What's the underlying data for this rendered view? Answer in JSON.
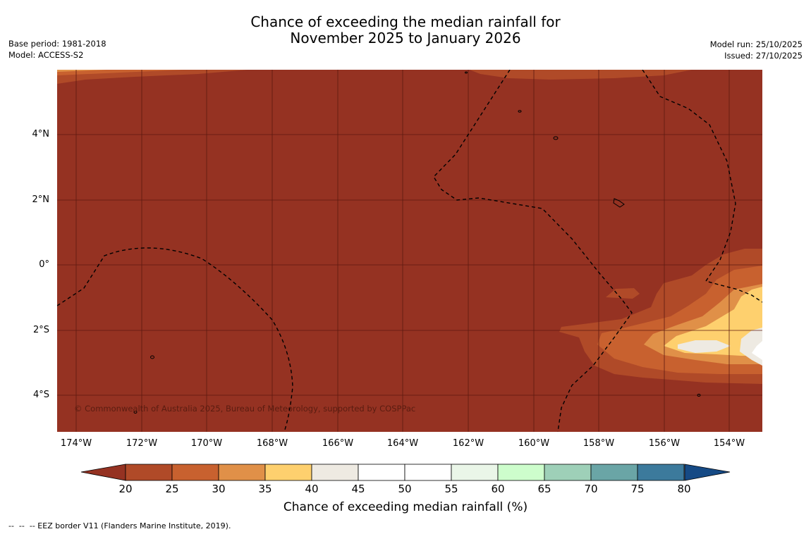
{
  "title": {
    "line1": "Chance of exceeding the median rainfall for",
    "line2": "November 2025 to January 2026"
  },
  "meta_left": {
    "base_period": "Base period: 1981-2018",
    "model": "Model: ACCESS-S2"
  },
  "meta_right": {
    "model_run": "Model run: 25/10/2025",
    "issued": "Issued: 27/10/2025"
  },
  "copyright": "© Commonwealth of Australia 2025, Bureau of Meteorology, supported by COSPPac",
  "lat_ticks": [
    "4°N",
    "2°N",
    "0°",
    "2°S",
    "4°S"
  ],
  "lon_ticks": [
    "174°W",
    "172°W",
    "170°W",
    "168°W",
    "166°W",
    "164°W",
    "162°W",
    "160°W",
    "158°W",
    "156°W",
    "154°W"
  ],
  "colorbar": {
    "ticks": [
      "20",
      "25",
      "30",
      "35",
      "40",
      "45",
      "50",
      "55",
      "60",
      "65",
      "70",
      "75",
      "80"
    ],
    "colors": [
      "#b04a28",
      "#c8612f",
      "#e09048",
      "#fed06e",
      "#eeeae2",
      "#ffffff",
      "#ffffff",
      "#eaf6e8",
      "#cdfdcc",
      "#9ed0b8",
      "#6aa5a6",
      "#3c7a9c"
    ],
    "under_color": "#953222",
    "over_color": "#164a85",
    "label": "Chance of exceeding median rainfall (%)"
  },
  "footnote": "--  --  -- EEZ border V11 (Flanders Marine Institute, 2019).",
  "colors": {
    "background_field": "#953222",
    "gridline": "#5c1a10"
  }
}
